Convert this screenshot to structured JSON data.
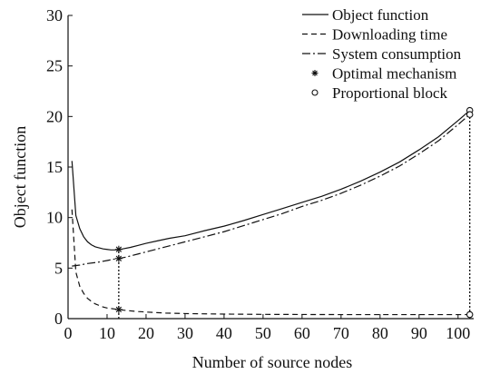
{
  "chart_data": {
    "type": "line",
    "xlabel": "Number of source nodes",
    "ylabel": "Object function",
    "xlim": [
      0,
      104
    ],
    "ylim": [
      0,
      30
    ],
    "x_ticks": [
      0,
      10,
      20,
      30,
      40,
      50,
      60,
      70,
      80,
      90,
      100
    ],
    "y_ticks": [
      0,
      5,
      10,
      15,
      20,
      25,
      30
    ],
    "grid": false,
    "legend_position": "top-right",
    "series": [
      {
        "name": "Object function",
        "style": "solid",
        "points": [
          [
            1,
            15.6
          ],
          [
            2,
            10.2
          ],
          [
            3,
            8.9
          ],
          [
            4,
            8.1
          ],
          [
            5,
            7.6
          ],
          [
            6,
            7.3
          ],
          [
            7,
            7.1
          ],
          [
            8,
            7.0
          ],
          [
            9,
            6.9
          ],
          [
            10,
            6.85
          ],
          [
            11,
            6.8
          ],
          [
            12,
            6.8
          ],
          [
            13,
            6.85
          ],
          [
            14,
            6.9
          ],
          [
            16,
            7.05
          ],
          [
            18,
            7.25
          ],
          [
            20,
            7.45
          ],
          [
            23,
            7.7
          ],
          [
            26,
            7.95
          ],
          [
            30,
            8.2
          ],
          [
            35,
            8.7
          ],
          [
            40,
            9.15
          ],
          [
            45,
            9.7
          ],
          [
            50,
            10.3
          ],
          [
            55,
            10.9
          ],
          [
            60,
            11.5
          ],
          [
            65,
            12.1
          ],
          [
            70,
            12.8
          ],
          [
            75,
            13.6
          ],
          [
            80,
            14.5
          ],
          [
            85,
            15.5
          ],
          [
            90,
            16.7
          ],
          [
            95,
            18.0
          ],
          [
            100,
            19.6
          ],
          [
            103,
            20.6
          ]
        ]
      },
      {
        "name": "Downloading time",
        "style": "dashed",
        "points": [
          [
            1,
            10.8
          ],
          [
            2,
            4.6
          ],
          [
            3,
            3.2
          ],
          [
            4,
            2.5
          ],
          [
            5,
            2.0
          ],
          [
            6,
            1.7
          ],
          [
            7,
            1.45
          ],
          [
            8,
            1.3
          ],
          [
            9,
            1.15
          ],
          [
            10,
            1.05
          ],
          [
            11,
            1.0
          ],
          [
            12,
            0.95
          ],
          [
            13,
            0.9
          ],
          [
            15,
            0.8
          ],
          [
            18,
            0.7
          ],
          [
            20,
            0.65
          ],
          [
            25,
            0.55
          ],
          [
            30,
            0.5
          ],
          [
            40,
            0.45
          ],
          [
            50,
            0.42
          ],
          [
            60,
            0.41
          ],
          [
            70,
            0.4
          ],
          [
            80,
            0.4
          ],
          [
            90,
            0.4
          ],
          [
            100,
            0.4
          ],
          [
            103,
            0.4
          ]
        ]
      },
      {
        "name": "System consumption",
        "style": "dash-dot",
        "points": [
          [
            1,
            5.2
          ],
          [
            3,
            5.3
          ],
          [
            5,
            5.45
          ],
          [
            8,
            5.6
          ],
          [
            10,
            5.75
          ],
          [
            12,
            5.9
          ],
          [
            13,
            5.95
          ],
          [
            15,
            6.1
          ],
          [
            18,
            6.4
          ],
          [
            20,
            6.6
          ],
          [
            25,
            7.1
          ],
          [
            30,
            7.6
          ],
          [
            35,
            8.1
          ],
          [
            40,
            8.6
          ],
          [
            45,
            9.2
          ],
          [
            50,
            9.8
          ],
          [
            55,
            10.4
          ],
          [
            60,
            11.1
          ],
          [
            65,
            11.7
          ],
          [
            70,
            12.4
          ],
          [
            75,
            13.2
          ],
          [
            80,
            14.1
          ],
          [
            85,
            15.1
          ],
          [
            90,
            16.3
          ],
          [
            95,
            17.6
          ],
          [
            100,
            19.2
          ],
          [
            103,
            20.2
          ]
        ]
      }
    ],
    "markers": [
      {
        "name": "Optimal mechanism",
        "symbol": "star",
        "points": [
          [
            13,
            6.85
          ],
          [
            13,
            5.95
          ],
          [
            13,
            0.9
          ]
        ]
      },
      {
        "name": "Proportional block",
        "symbol": "circle",
        "points": [
          [
            103,
            20.6
          ],
          [
            103,
            20.2
          ],
          [
            103,
            0.4
          ]
        ]
      }
    ],
    "vertical_guides": [
      {
        "x": 13,
        "y_from": 0,
        "y_to": 6.85,
        "style": "dotted"
      },
      {
        "x": 103,
        "y_from": 0,
        "y_to": 20.6,
        "style": "dotted"
      }
    ],
    "legend": [
      {
        "label": "Object function",
        "symbol": "solid-line"
      },
      {
        "label": "Downloading time",
        "symbol": "dashed-line"
      },
      {
        "label": "System consumption",
        "symbol": "dash-dot-line"
      },
      {
        "label": "Optimal mechanism",
        "symbol": "star"
      },
      {
        "label": "Proportional block",
        "symbol": "circle"
      }
    ]
  }
}
